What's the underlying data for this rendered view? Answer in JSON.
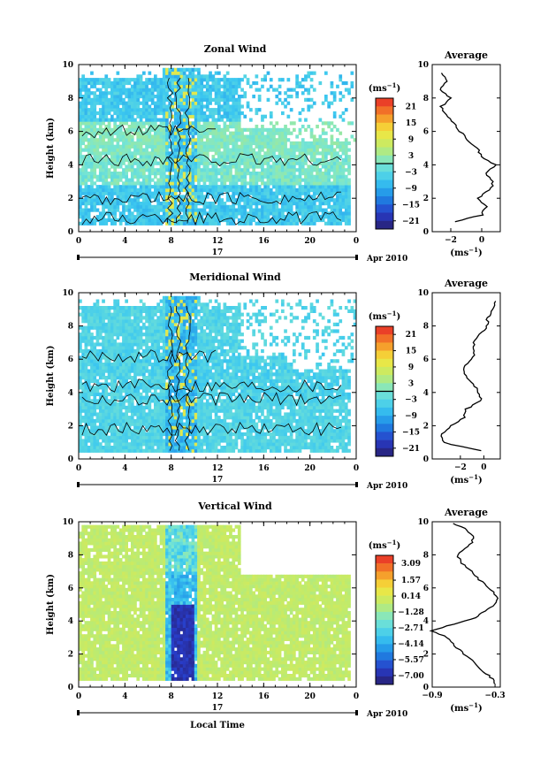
{
  "chart_data": [
    {
      "type": "heatmap",
      "title": "Zonal Wind",
      "ylabel": "Height (km)",
      "xlabel": "",
      "xlim": [
        0,
        24
      ],
      "ylim": [
        0,
        10
      ],
      "xticks": [
        "0",
        "4",
        "8",
        "12",
        "16",
        "20",
        "0"
      ],
      "yticks": [
        "0",
        "2",
        "4",
        "6",
        "8",
        "10"
      ],
      "date_day": "17",
      "date_label": "Apr 2010",
      "colorbar": {
        "unit": "(ms",
        "unit_sup": "−1",
        "unit_close": ")",
        "range": [
          -24,
          24
        ],
        "ticks": [
          "21",
          "15",
          "9",
          "3",
          "−3",
          "−9",
          "−15",
          "−21"
        ],
        "tick_values": [
          21,
          15,
          9,
          3,
          -3,
          -9,
          -15,
          -21
        ]
      },
      "profile": {
        "title": "Average",
        "xlabel": "(ms",
        "xlabel_sup": "−1",
        "xlabel_close": ")",
        "xlim": [
          -3.2,
          1.2
        ],
        "xticks": [
          "−2",
          "0"
        ],
        "xtick_values": [
          -2,
          0
        ],
        "yticks": [
          "0",
          "2",
          "4",
          "6",
          "8",
          "10"
        ],
        "heights": [
          0.6,
          1.0,
          1.5,
          2.0,
          2.5,
          3.0,
          3.5,
          4.0,
          4.5,
          5.0,
          5.5,
          6.0,
          6.5,
          7.0,
          7.5,
          8.0,
          8.5,
          9.0,
          9.5
        ],
        "values": [
          -1.7,
          0.0,
          0.3,
          -0.2,
          0.5,
          0.8,
          0.2,
          0.9,
          0.0,
          -0.3,
          -0.9,
          -1.4,
          -1.8,
          -2.3,
          -2.6,
          -2.0,
          -2.7,
          -2.3,
          -2.6
        ]
      }
    },
    {
      "type": "heatmap",
      "title": "Meridional Wind",
      "ylabel": "Height (km)",
      "xlabel": "",
      "xlim": [
        0,
        24
      ],
      "ylim": [
        0,
        10
      ],
      "xticks": [
        "0",
        "4",
        "8",
        "12",
        "16",
        "20",
        "0"
      ],
      "yticks": [
        "0",
        "2",
        "4",
        "6",
        "8",
        "10"
      ],
      "date_day": "17",
      "date_label": "Apr 2010",
      "colorbar": {
        "unit": "(ms",
        "unit_sup": "−1",
        "unit_close": ")",
        "range": [
          -24,
          24
        ],
        "ticks": [
          "21",
          "15",
          "9",
          "3",
          "−3",
          "−9",
          "−15",
          "−21"
        ],
        "tick_values": [
          21,
          15,
          9,
          3,
          -3,
          -9,
          -15,
          -21
        ]
      },
      "profile": {
        "title": "Average",
        "xlabel": "(ms",
        "xlabel_sup": "−1",
        "xlabel_close": ")",
        "xlim": [
          -4.4,
          1.4
        ],
        "xticks": [
          "−2",
          "0"
        ],
        "xtick_values": [
          -2,
          0
        ],
        "yticks": [
          "0",
          "2",
          "4",
          "6",
          "8",
          "10"
        ],
        "heights": [
          0.5,
          1.0,
          1.5,
          2.0,
          2.5,
          3.0,
          3.5,
          4.0,
          4.5,
          5.0,
          5.5,
          6.0,
          6.5,
          7.0,
          7.5,
          8.0,
          8.5,
          9.0,
          9.5
        ],
        "values": [
          -0.3,
          -3.5,
          -3.6,
          -2.8,
          -1.7,
          -1.5,
          -0.2,
          -0.5,
          -0.8,
          -1.6,
          -1.8,
          -1.0,
          -0.8,
          -0.9,
          -0.3,
          0.3,
          0.3,
          0.8,
          1.0
        ]
      }
    },
    {
      "type": "heatmap",
      "title": "Vertical Wind",
      "ylabel": "Height (km)",
      "xlabel": "Local Time",
      "xlim": [
        0,
        24
      ],
      "ylim": [
        0,
        10
      ],
      "xticks": [
        "0",
        "4",
        "8",
        "12",
        "16",
        "20",
        "0"
      ],
      "yticks": [
        "0",
        "2",
        "4",
        "6",
        "8",
        "10"
      ],
      "date_day": "17",
      "date_label": "Apr 2010",
      "colorbar": {
        "unit": "(ms",
        "unit_sup": "−1",
        "unit_close": ")",
        "range": [
          -7.8,
          3.8
        ],
        "ticks": [
          "3.09",
          "1.57",
          "0.14",
          "−1.28",
          "−2.71",
          "−4.14",
          "−5.57",
          "−7.00"
        ],
        "tick_values": [
          3.09,
          1.57,
          0.14,
          -1.28,
          -2.71,
          -4.14,
          -5.57,
          -7.0
        ]
      },
      "profile": {
        "title": "Average",
        "xlabel": "(ms",
        "xlabel_sup": "−1",
        "xlabel_close": ")",
        "xlim": [
          -0.9,
          -0.25
        ],
        "xticks": [
          "−0.9",
          "−0.3"
        ],
        "xtick_values": [
          -0.9,
          -0.3
        ],
        "yticks": [
          "0",
          "2",
          "4",
          "6",
          "8",
          "10"
        ],
        "heights": [
          0.2,
          0.6,
          1.0,
          1.5,
          2.0,
          2.5,
          3.0,
          3.4,
          3.8,
          4.2,
          4.6,
          5.0,
          5.5,
          6.0,
          6.5,
          7.0,
          7.5,
          8.0,
          8.5,
          9.0,
          9.5,
          9.9
        ],
        "values": [
          -0.3,
          -0.34,
          -0.42,
          -0.5,
          -0.6,
          -0.68,
          -0.76,
          -0.9,
          -0.7,
          -0.48,
          -0.4,
          -0.3,
          -0.28,
          -0.36,
          -0.45,
          -0.52,
          -0.62,
          -0.66,
          -0.55,
          -0.5,
          -0.56,
          -0.7
        ]
      }
    }
  ]
}
